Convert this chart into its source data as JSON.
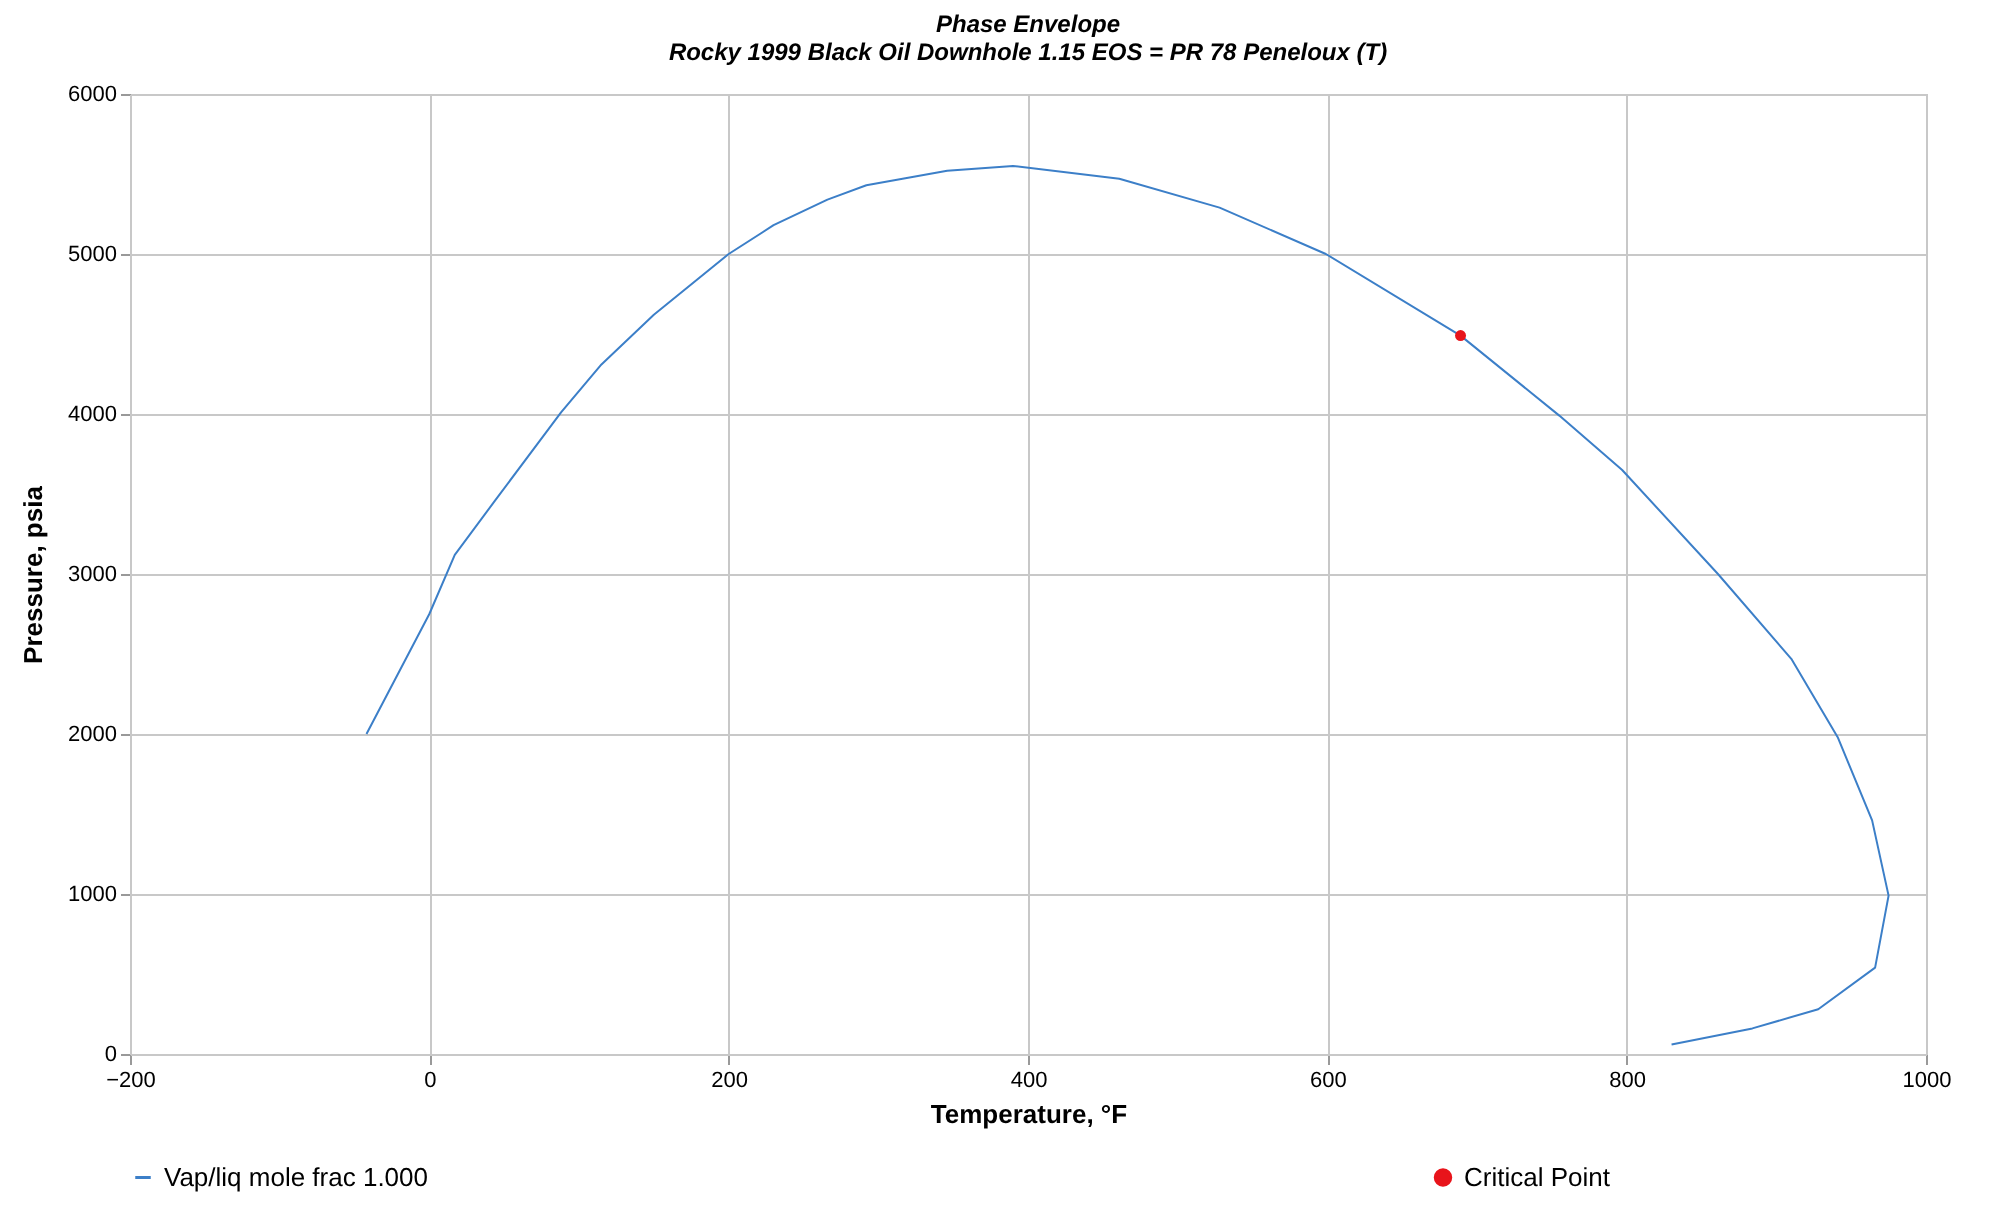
{
  "chart_data": {
    "type": "line",
    "title": "Phase Envelope",
    "subtitle": "Rocky 1999 Black Oil Downhole 1.15 EOS = PR 78 Peneloux (T)",
    "xlabel": "Temperature, °F",
    "ylabel": "Pressure, psia",
    "xlim": [
      -200,
      1000
    ],
    "xticks": [
      -200,
      0,
      200,
      400,
      600,
      800,
      1000
    ],
    "ylim": [
      0,
      6000
    ],
    "yticks": [
      0,
      1000,
      2000,
      3000,
      4000,
      5000,
      6000
    ],
    "grid": true,
    "legend": "bottom",
    "series": [
      {
        "name": "Vap/liq mole frac 1.000",
        "color": "#3c7fc8",
        "x": [
          -42,
          0,
          17,
          44,
          88,
          115,
          150,
          200,
          230,
          266,
          292,
          346,
          390,
          461,
          528,
          599,
          689,
          755,
          797,
          861,
          910,
          941,
          964,
          975,
          966,
          928,
          884,
          830
        ],
        "values": [
          2000,
          2750,
          3120,
          3460,
          4010,
          4310,
          4620,
          5000,
          5180,
          5340,
          5430,
          5520,
          5550,
          5470,
          5290,
          5000,
          4490,
          3990,
          3650,
          3000,
          2470,
          1980,
          1460,
          990,
          540,
          280,
          160,
          60
        ]
      },
      {
        "name": "Critical Point",
        "color": "#e8141b",
        "type": "scatter",
        "x": [
          689
        ],
        "values": [
          4490
        ]
      }
    ]
  }
}
